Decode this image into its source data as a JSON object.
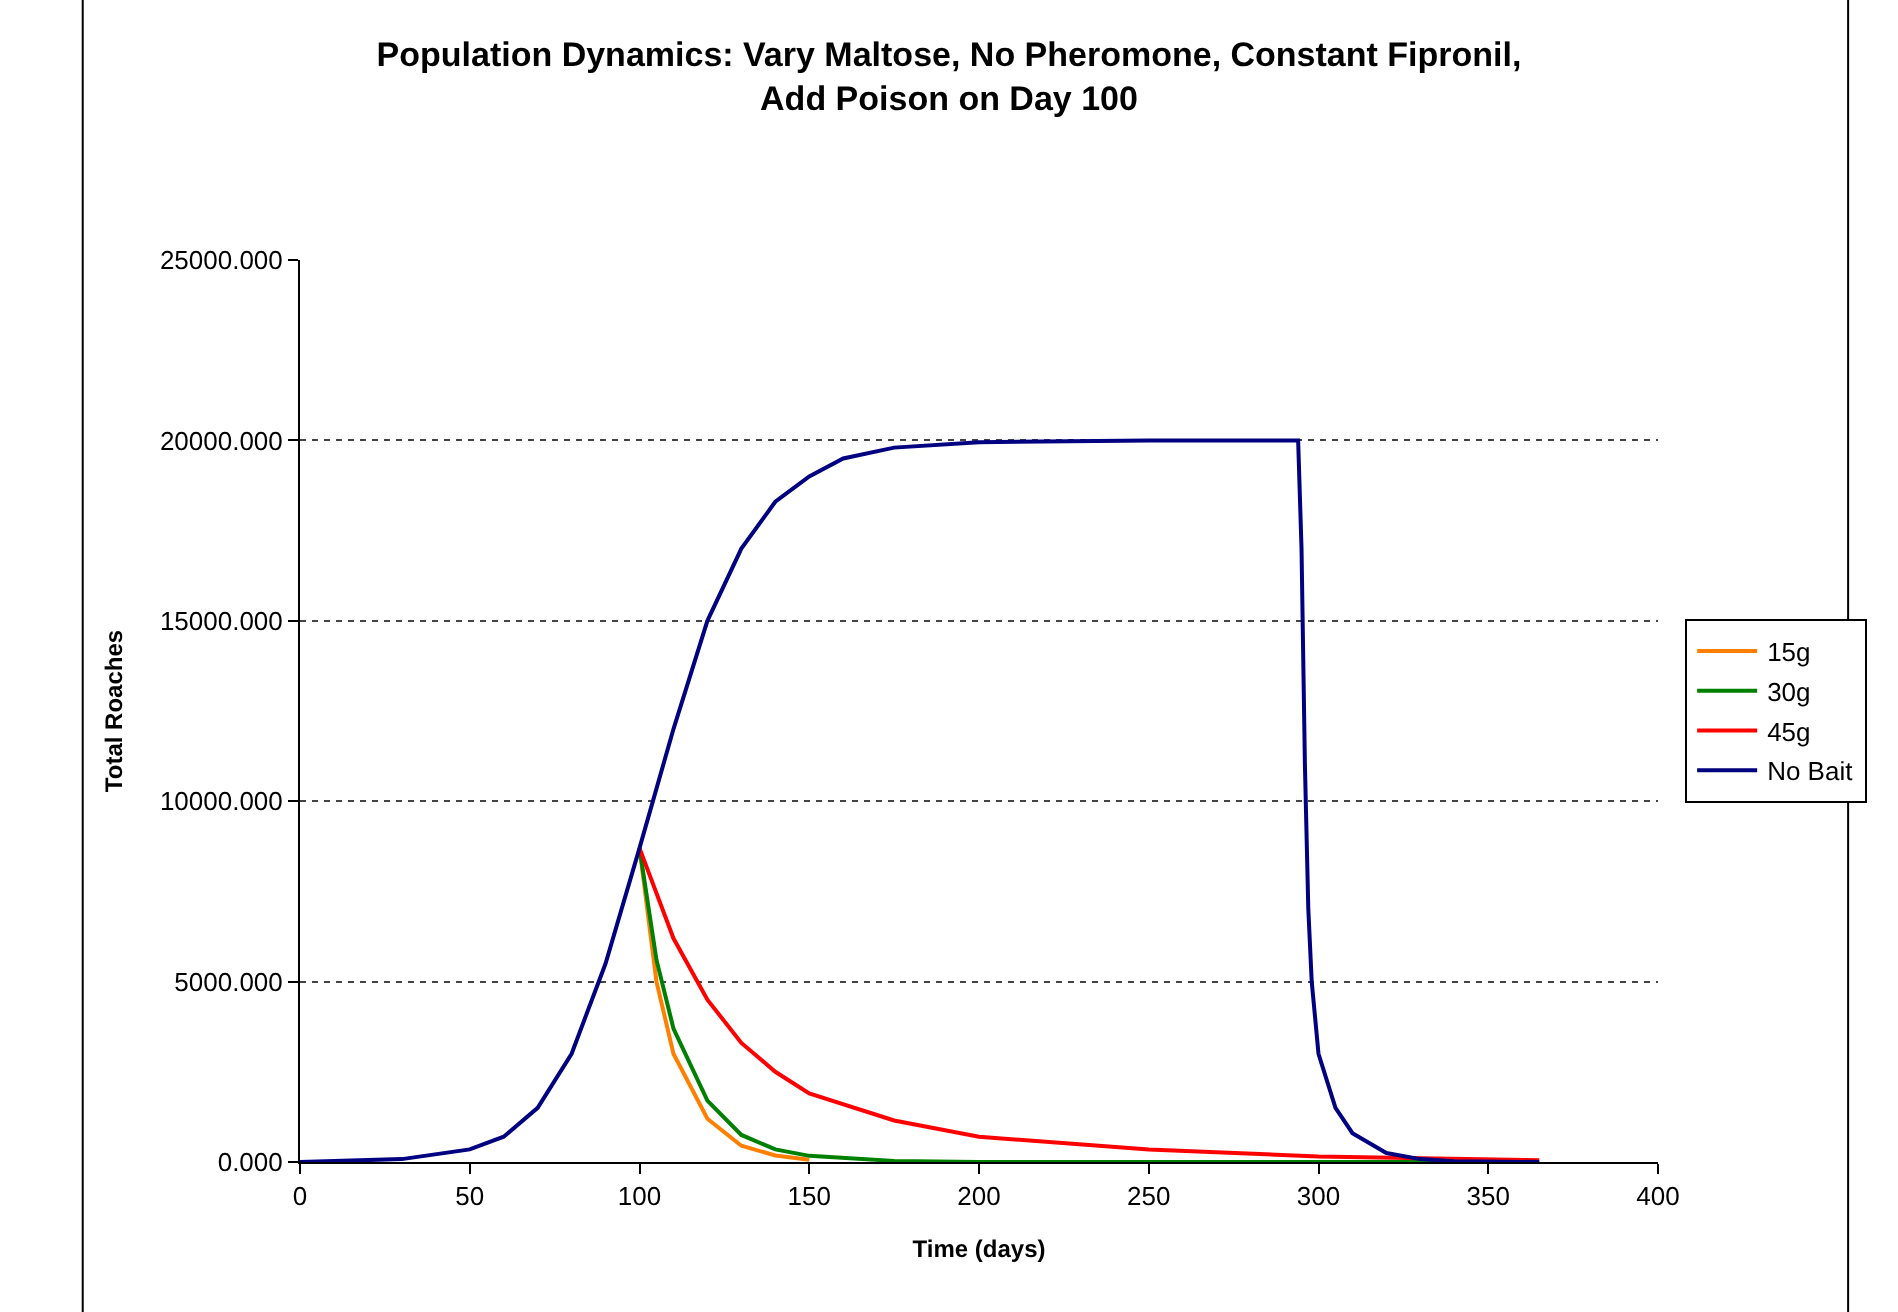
{
  "chart_data": {
    "type": "line",
    "title": "Population Dynamics: Vary Maltose, No Pheromone, Constant Fipronil,\nAdd Poison on Day 100",
    "xlabel": "Time (days)",
    "ylabel": "Total Roaches",
    "xlim": [
      0,
      400
    ],
    "xticks": [
      0,
      50,
      100,
      150,
      200,
      250,
      300,
      350,
      400
    ],
    "ylim": [
      0,
      25000
    ],
    "yticks": [
      {
        "value": 0,
        "label": "0.000"
      },
      {
        "value": 5000,
        "label": "5000.000"
      },
      {
        "value": 10000,
        "label": "10000.000"
      },
      {
        "value": 15000,
        "label": "15000.000"
      },
      {
        "value": 20000,
        "label": "20000.000"
      },
      {
        "value": 25000,
        "label": "25000.000"
      }
    ],
    "grid": "y",
    "legend": "right",
    "marker": "none",
    "line_style": "solid",
    "series": [
      {
        "name": "15g",
        "color": "#ff8000",
        "x": [
          100,
          105,
          110,
          120,
          130,
          140,
          150
        ],
        "values": [
          8700,
          5000,
          3000,
          1200,
          450,
          180,
          60
        ]
      },
      {
        "name": "30g",
        "color": "#008000",
        "x": [
          100,
          105,
          110,
          120,
          130,
          140,
          150,
          175,
          200,
          365
        ],
        "values": [
          8700,
          5600,
          3700,
          1700,
          750,
          350,
          170,
          30,
          0,
          0
        ]
      },
      {
        "name": "45g",
        "color": "#ff0000",
        "x": [
          100,
          110,
          120,
          130,
          140,
          150,
          175,
          200,
          250,
          300,
          365
        ],
        "values": [
          8700,
          6200,
          4500,
          3300,
          2500,
          1900,
          1150,
          700,
          350,
          150,
          50
        ]
      },
      {
        "name": "No Bait",
        "color": "#000080",
        "x": [
          0,
          30,
          50,
          60,
          70,
          80,
          90,
          100,
          110,
          120,
          130,
          140,
          150,
          160,
          175,
          200,
          250,
          294,
          295,
          296,
          297,
          298,
          300,
          305,
          310,
          320,
          330,
          340,
          365
        ],
        "values": [
          0,
          80,
          350,
          700,
          1500,
          3000,
          5500,
          8700,
          12000,
          15000,
          17000,
          18300,
          19000,
          19500,
          19800,
          19950,
          20000,
          20000,
          17000,
          11000,
          7000,
          5000,
          3000,
          1500,
          800,
          250,
          80,
          20,
          0
        ]
      }
    ]
  }
}
